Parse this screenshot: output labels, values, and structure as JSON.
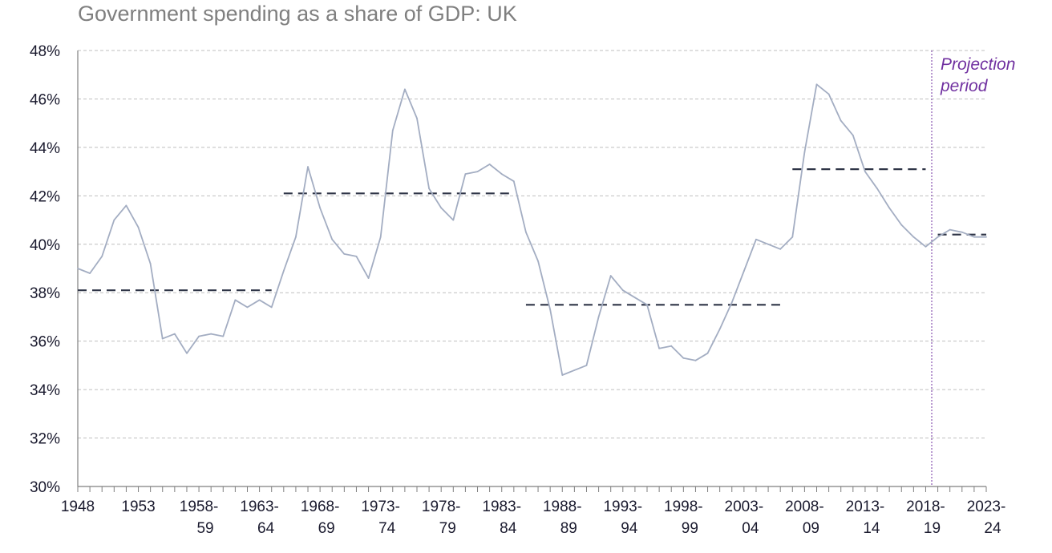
{
  "chart_data": {
    "type": "line",
    "title": "Government spending as a share of GDP: UK",
    "xlabel": "",
    "ylabel": "",
    "ylim": [
      30,
      48
    ],
    "ytick_labels": [
      "30%",
      "32%",
      "34%",
      "36%",
      "38%",
      "40%",
      "42%",
      "44%",
      "46%",
      "48%"
    ],
    "xtick_labels": [
      [
        "1948",
        ""
      ],
      [
        "1953",
        ""
      ],
      [
        "1958-",
        "59"
      ],
      [
        "1963-",
        "64"
      ],
      [
        "1968-",
        "69"
      ],
      [
        "1973-",
        "74"
      ],
      [
        "1978-",
        "79"
      ],
      [
        "1983-",
        "84"
      ],
      [
        "1988-",
        "89"
      ],
      [
        "1993-",
        "94"
      ],
      [
        "1998-",
        "99"
      ],
      [
        "2003-",
        "04"
      ],
      [
        "2008-",
        "09"
      ],
      [
        "2013-",
        "14"
      ],
      [
        "2018-",
        "19"
      ],
      [
        "2023-",
        "24"
      ]
    ],
    "grid": "horizontal dashed",
    "projection_start": 71,
    "annotation": [
      "Projection",
      "period"
    ],
    "series": [
      {
        "values": [
          39.0,
          38.8,
          39.5,
          41.0,
          41.6,
          40.7,
          39.2,
          36.1,
          36.3,
          35.5,
          36.2,
          36.3,
          36.2,
          37.7,
          37.4,
          37.7,
          37.4,
          38.9,
          40.3,
          43.2,
          41.5,
          40.2,
          39.6,
          39.5,
          38.6,
          40.3,
          44.7,
          46.4,
          45.2,
          42.3,
          41.5,
          41.0,
          42.9,
          43.0,
          43.3,
          42.9,
          42.6,
          40.5,
          39.3,
          37.3,
          34.6,
          34.8,
          35.0,
          37.0,
          38.7,
          38.1,
          37.8,
          37.5,
          35.7,
          35.8,
          35.3,
          35.2,
          35.5,
          36.5,
          37.6,
          38.9,
          40.2,
          40.0,
          39.8,
          40.3,
          43.8,
          46.6,
          46.2,
          45.1,
          44.5,
          43.0,
          42.3,
          41.5,
          40.8,
          40.3,
          39.9,
          40.3,
          40.6,
          40.5,
          40.3,
          40.3
        ],
        "color": "#a3adc2"
      }
    ],
    "period_averages": [
      {
        "start": 0,
        "end": 16,
        "value": 38.1
      },
      {
        "start": 17,
        "end": 36,
        "value": 42.1
      },
      {
        "start": 37,
        "end": 58,
        "value": 37.5
      },
      {
        "start": 59,
        "end": 70,
        "value": 43.1
      },
      {
        "start": 71,
        "end": 75,
        "value": 40.4
      }
    ],
    "colors": {
      "line": "#a3adc2",
      "average": "#2f3547",
      "grid": "#bfbfbf",
      "axis": "#7f7f7f",
      "projection": "#7030a0",
      "title": "#7f7f7f"
    }
  }
}
